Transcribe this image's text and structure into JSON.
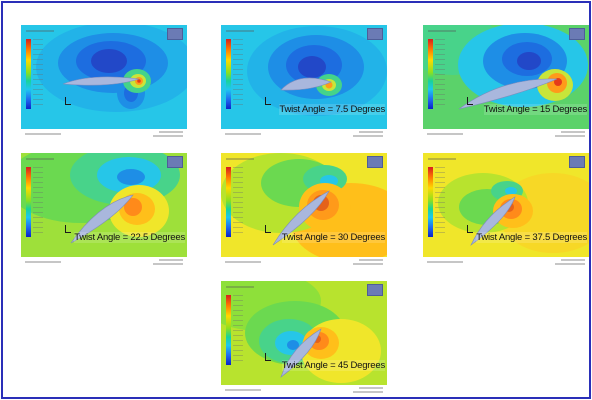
{
  "panels": [
    {
      "label": "",
      "angle": 0
    },
    {
      "label": "Twist Angle = 7.5 Degrees",
      "angle": 7.5
    },
    {
      "label": "Twist Angle = 15 Degrees",
      "angle": 15
    },
    {
      "label": "Twist Angle = 22.5 Degrees",
      "angle": 22.5
    },
    {
      "label": "Twist Angle = 30 Degrees",
      "angle": 30
    },
    {
      "label": "Twist Angle = 37.5 Degrees",
      "angle": 37.5
    },
    {
      "label": "Twist Angle = 45 Degrees",
      "angle": 45
    }
  ],
  "colors": {
    "frame_border": "#2a2fb8",
    "blue": "#1f6df2",
    "cyan": "#1ec7f0",
    "green": "#4fd65a",
    "yellow": "#f0e62a",
    "orange": "#ff9a1a",
    "red": "#e53a1a",
    "airfoil": "#a9b7dd"
  }
}
